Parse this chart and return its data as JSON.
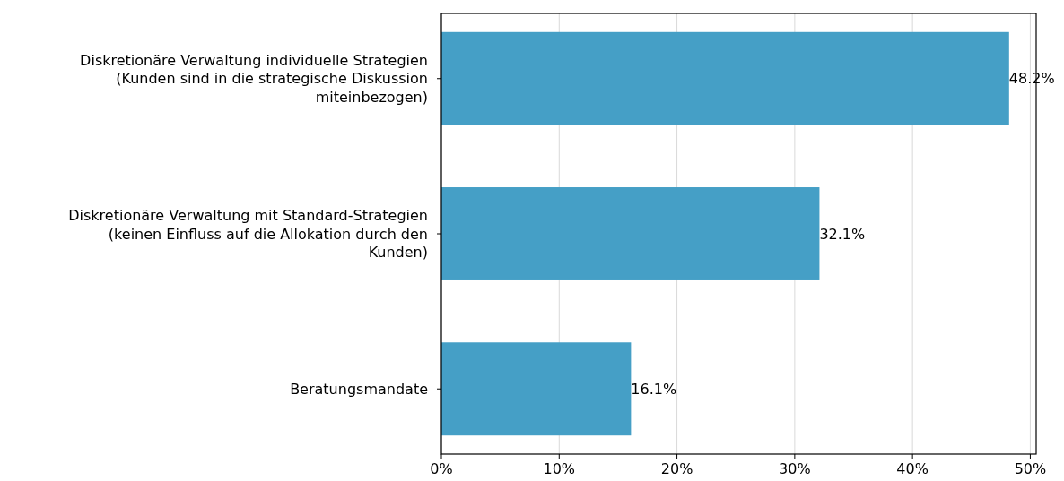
{
  "chart_data": {
    "type": "bar",
    "orientation": "horizontal",
    "categories": [
      "Diskretionäre Verwaltung individuelle Strategien\n(Kunden sind in die strategische Diskussion\nmiteinbezogen)",
      "Diskretionäre Verwaltung mit Standard-Strategien\n(keinen Einfluss auf die Allokation durch den\nKunden)",
      "Beratungsmandate"
    ],
    "values": [
      48.2,
      32.1,
      16.1
    ],
    "value_labels": [
      "48.2%",
      "32.1%",
      "16.1%"
    ],
    "color": "#459fc6",
    "xlim": [
      0,
      50.5
    ],
    "xticks": [
      {
        "value": 0,
        "label": "0%"
      },
      {
        "value": 10,
        "label": "10%"
      },
      {
        "value": 20,
        "label": "20%"
      },
      {
        "value": 30,
        "label": "30%"
      },
      {
        "value": 40,
        "label": "40%"
      },
      {
        "value": 50,
        "label": "50%"
      }
    ],
    "grid": "x"
  }
}
